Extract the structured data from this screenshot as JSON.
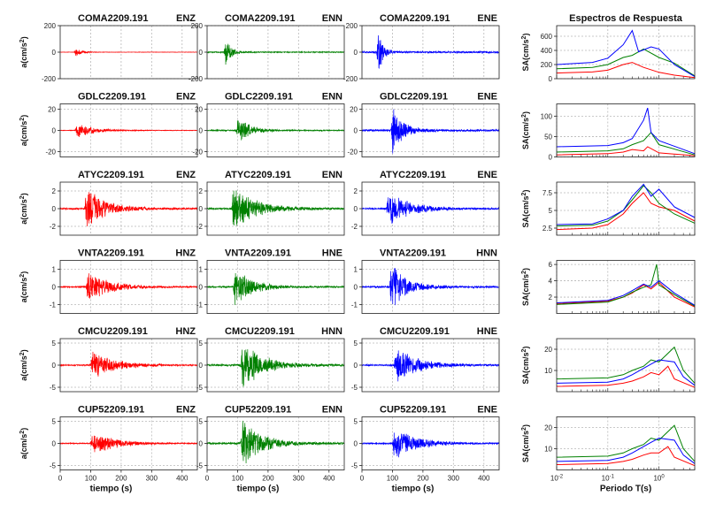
{
  "figure": {
    "time_label": "tiempo (s)",
    "period_label": "Periodo T(s)",
    "spectra_title": "Espectros de Respuesta",
    "time_ticks": [
      "0",
      "100",
      "200",
      "300",
      "400"
    ],
    "period_ticks": [
      "10",
      "10",
      "10"
    ],
    "period_tick_exps": [
      "-2",
      "-1",
      "0"
    ]
  },
  "colors": {
    "ch1": "#ff0000",
    "ch2": "#008000",
    "ch3": "#0000ff",
    "baseline": "#000000"
  },
  "chart_data": [
    {
      "type": "line",
      "station": "COMA2209.191",
      "ylabel": "a(cm/s",
      "ylabel_sup": "2",
      "ylabel_close": ")",
      "sa_label": "SA(cm/s",
      "ylim": [
        -200,
        200
      ],
      "yticks": [
        "200",
        "0",
        "-200"
      ],
      "yticks_val": [
        200,
        0,
        -200
      ],
      "channels": [
        "ENZ",
        "ENN",
        "ENE"
      ],
      "amps": [
        35,
        110,
        190
      ],
      "arrival": [
        45,
        55,
        48
      ],
      "decay": [
        20,
        18,
        15
      ],
      "sa_ylim": [
        0,
        750
      ],
      "sa_yticks": [
        0,
        200,
        400,
        600
      ],
      "sa_series": [
        [
          [
            0.01,
            80
          ],
          [
            0.05,
            95
          ],
          [
            0.1,
            120
          ],
          [
            0.2,
            200
          ],
          [
            0.3,
            230
          ],
          [
            0.5,
            160
          ],
          [
            1,
            90
          ],
          [
            2,
            50
          ],
          [
            5,
            15
          ]
        ],
        [
          [
            0.01,
            140
          ],
          [
            0.05,
            160
          ],
          [
            0.1,
            200
          ],
          [
            0.2,
            300
          ],
          [
            0.3,
            330
          ],
          [
            0.5,
            420
          ],
          [
            1,
            300
          ],
          [
            2,
            220
          ],
          [
            5,
            40
          ]
        ],
        [
          [
            0.01,
            200
          ],
          [
            0.05,
            230
          ],
          [
            0.1,
            290
          ],
          [
            0.2,
            480
          ],
          [
            0.3,
            680
          ],
          [
            0.4,
            380
          ],
          [
            0.7,
            450
          ],
          [
            1,
            420
          ],
          [
            2,
            200
          ],
          [
            5,
            30
          ]
        ]
      ]
    },
    {
      "type": "line",
      "station": "GDLC2209.191",
      "ylabel": "a(cm/s",
      "ylabel_sup": "2",
      "ylabel_close": ")",
      "sa_label": "SA(cm/s",
      "ylim": [
        -25,
        25
      ],
      "yticks": [
        "20",
        "0",
        "-20"
      ],
      "yticks_val": [
        20,
        0,
        -20
      ],
      "channels": [
        "ENZ",
        "ENN",
        "ENE"
      ],
      "amps": [
        8,
        15,
        24
      ],
      "arrival": [
        50,
        95,
        95
      ],
      "decay": [
        50,
        40,
        35
      ],
      "sa_ylim": [
        0,
        130
      ],
      "sa_yticks": [
        0,
        50,
        100
      ],
      "sa_series": [
        [
          [
            0.01,
            5
          ],
          [
            0.1,
            8
          ],
          [
            0.2,
            12
          ],
          [
            0.3,
            18
          ],
          [
            0.5,
            15
          ],
          [
            0.6,
            25
          ],
          [
            1,
            10
          ],
          [
            5,
            3
          ]
        ],
        [
          [
            0.01,
            12
          ],
          [
            0.1,
            15
          ],
          [
            0.2,
            20
          ],
          [
            0.3,
            30
          ],
          [
            0.5,
            40
          ],
          [
            0.7,
            60
          ],
          [
            1,
            30
          ],
          [
            5,
            5
          ]
        ],
        [
          [
            0.01,
            25
          ],
          [
            0.1,
            28
          ],
          [
            0.2,
            35
          ],
          [
            0.3,
            45
          ],
          [
            0.5,
            90
          ],
          [
            0.6,
            120
          ],
          [
            0.7,
            60
          ],
          [
            1,
            40
          ],
          [
            5,
            8
          ]
        ]
      ]
    },
    {
      "type": "line",
      "station": "ATYC2209.191",
      "ylabel": "a(cm/s",
      "ylabel_sup": "2",
      "ylabel_close": ")",
      "sa_label": "SA(cm/s",
      "ylim": [
        -3,
        3
      ],
      "yticks": [
        "2",
        "0",
        "-2"
      ],
      "yticks_val": [
        2,
        0,
        -2
      ],
      "channels": [
        "ENZ",
        "ENN",
        "ENE"
      ],
      "amps": [
        2.6,
        2.7,
        2.1
      ],
      "arrival": [
        80,
        80,
        80
      ],
      "decay": [
        60,
        70,
        70
      ],
      "sa_ylim": [
        1.5,
        9
      ],
      "sa_yticks": [
        2.5,
        5,
        7.5
      ],
      "sa_series": [
        [
          [
            0.01,
            2.3
          ],
          [
            0.05,
            2.5
          ],
          [
            0.1,
            3
          ],
          [
            0.2,
            4.5
          ],
          [
            0.3,
            6
          ],
          [
            0.5,
            7.5
          ],
          [
            0.7,
            6
          ],
          [
            1,
            5.5
          ],
          [
            2,
            5
          ],
          [
            5,
            3.5
          ]
        ],
        [
          [
            0.01,
            3
          ],
          [
            0.05,
            3.1
          ],
          [
            0.1,
            3.8
          ],
          [
            0.2,
            5
          ],
          [
            0.3,
            7
          ],
          [
            0.5,
            8.7
          ],
          [
            0.7,
            7
          ],
          [
            1,
            8
          ],
          [
            2,
            5.5
          ],
          [
            5,
            4
          ]
        ]
      ],
      "sa_extra": [
        [
          0.01,
          2.8
        ],
        [
          0.05,
          2.9
        ],
        [
          0.1,
          3.5
        ],
        [
          0.2,
          5
        ],
        [
          0.3,
          6.5
        ],
        [
          0.5,
          8.5
        ],
        [
          0.7,
          7.5
        ],
        [
          1,
          6
        ],
        [
          2,
          4.5
        ],
        [
          5,
          3.2
        ]
      ]
    },
    {
      "type": "line",
      "station": "VNTA2209.191",
      "ylabel": "a(cm/s",
      "ylabel_sup": "2",
      "ylabel_close": ")",
      "sa_label": "SA(cm/s",
      "ylim": [
        -1.5,
        1.5
      ],
      "yticks": [
        "1",
        "0",
        "-1"
      ],
      "yticks_val": [
        1,
        0,
        -1
      ],
      "channels": [
        "HNZ",
        "HNE",
        "HNN"
      ],
      "amps": [
        1.1,
        1.2,
        1.4
      ],
      "arrival": [
        85,
        85,
        90
      ],
      "decay": [
        60,
        55,
        50
      ],
      "sa_ylim": [
        0,
        6.5
      ],
      "sa_yticks": [
        2,
        4,
        6
      ],
      "sa_series": [
        [
          [
            0.01,
            1.2
          ],
          [
            0.1,
            1.5
          ],
          [
            0.2,
            2
          ],
          [
            0.3,
            2.5
          ],
          [
            0.5,
            3.5
          ],
          [
            0.7,
            3
          ],
          [
            1,
            3.8
          ],
          [
            2,
            2
          ],
          [
            5,
            0.8
          ]
        ],
        [
          [
            0.01,
            1.1
          ],
          [
            0.1,
            1.4
          ],
          [
            0.2,
            2
          ],
          [
            0.3,
            2.6
          ],
          [
            0.5,
            3.2
          ],
          [
            0.7,
            3.5
          ],
          [
            0.9,
            6
          ],
          [
            1,
            3.5
          ],
          [
            2,
            2.3
          ],
          [
            5,
            0.9
          ]
        ],
        [
          [
            0.01,
            1.3
          ],
          [
            0.1,
            1.6
          ],
          [
            0.2,
            2.2
          ],
          [
            0.3,
            2.8
          ],
          [
            0.5,
            3.6
          ],
          [
            0.7,
            3.2
          ],
          [
            1,
            4
          ],
          [
            2,
            2.5
          ],
          [
            5,
            1
          ]
        ]
      ]
    },
    {
      "type": "line",
      "station": "CMCU2209.191",
      "ylabel": "a(cm/s",
      "ylabel_sup": "2",
      "ylabel_close": ")",
      "sa_label": "SA(cm/s",
      "ylim": [
        -6,
        6
      ],
      "yticks": [
        "5",
        "0",
        "-5"
      ],
      "yticks_val": [
        5,
        0,
        -5
      ],
      "channels": [
        "HNZ",
        "HNN",
        "HNE"
      ],
      "amps": [
        3.5,
        6,
        4.5
      ],
      "arrival": [
        100,
        110,
        105
      ],
      "decay": [
        70,
        65,
        70
      ],
      "sa_ylim": [
        0,
        25
      ],
      "sa_yticks": [
        10,
        20
      ],
      "sa_series": [
        [
          [
            0.01,
            2.5
          ],
          [
            0.1,
            3
          ],
          [
            0.2,
            4
          ],
          [
            0.3,
            5
          ],
          [
            0.5,
            7
          ],
          [
            0.7,
            9
          ],
          [
            1,
            8
          ],
          [
            1.5,
            12
          ],
          [
            2,
            6
          ],
          [
            5,
            2
          ]
        ],
        [
          [
            0.01,
            6
          ],
          [
            0.1,
            6.5
          ],
          [
            0.2,
            8
          ],
          [
            0.3,
            10
          ],
          [
            0.5,
            12
          ],
          [
            0.7,
            15
          ],
          [
            1,
            14
          ],
          [
            2,
            21
          ],
          [
            3,
            10
          ],
          [
            5,
            4
          ]
        ],
        [
          [
            0.01,
            4
          ],
          [
            0.1,
            4.5
          ],
          [
            0.2,
            6
          ],
          [
            0.3,
            8
          ],
          [
            0.5,
            11
          ],
          [
            0.7,
            13
          ],
          [
            1,
            15
          ],
          [
            2,
            14
          ],
          [
            3,
            7
          ],
          [
            5,
            3
          ]
        ]
      ]
    },
    {
      "type": "line",
      "station": "CUP52209.191",
      "ylabel": "a(cm/s",
      "ylabel_sup": "2",
      "ylabel_close": ")",
      "sa_label": "SA(cm/s",
      "ylim": [
        -6,
        6
      ],
      "yticks": [
        "5",
        "0",
        "-5"
      ],
      "yticks_val": [
        5,
        0,
        -5
      ],
      "channels": [
        "ENZ",
        "ENN",
        "ENE"
      ],
      "amps": [
        3,
        6,
        4
      ],
      "arrival": [
        100,
        110,
        100
      ],
      "decay": [
        70,
        60,
        70
      ],
      "sa_ylim": [
        0,
        25
      ],
      "sa_yticks": [
        10,
        20
      ],
      "sa_series": [
        [
          [
            0.01,
            2.5
          ],
          [
            0.1,
            3
          ],
          [
            0.2,
            4
          ],
          [
            0.3,
            5
          ],
          [
            0.5,
            7
          ],
          [
            0.7,
            8
          ],
          [
            1,
            8
          ],
          [
            1.5,
            11
          ],
          [
            2,
            6
          ],
          [
            5,
            2
          ]
        ],
        [
          [
            0.01,
            6
          ],
          [
            0.1,
            6.5
          ],
          [
            0.2,
            8
          ],
          [
            0.3,
            10
          ],
          [
            0.5,
            12
          ],
          [
            0.7,
            15
          ],
          [
            1,
            14
          ],
          [
            2,
            21
          ],
          [
            3,
            10
          ],
          [
            5,
            4
          ]
        ],
        [
          [
            0.01,
            4
          ],
          [
            0.1,
            4.5
          ],
          [
            0.2,
            6
          ],
          [
            0.3,
            8
          ],
          [
            0.5,
            11
          ],
          [
            0.7,
            13
          ],
          [
            1,
            15
          ],
          [
            2,
            14
          ],
          [
            3,
            7
          ],
          [
            5,
            3
          ]
        ]
      ]
    }
  ]
}
